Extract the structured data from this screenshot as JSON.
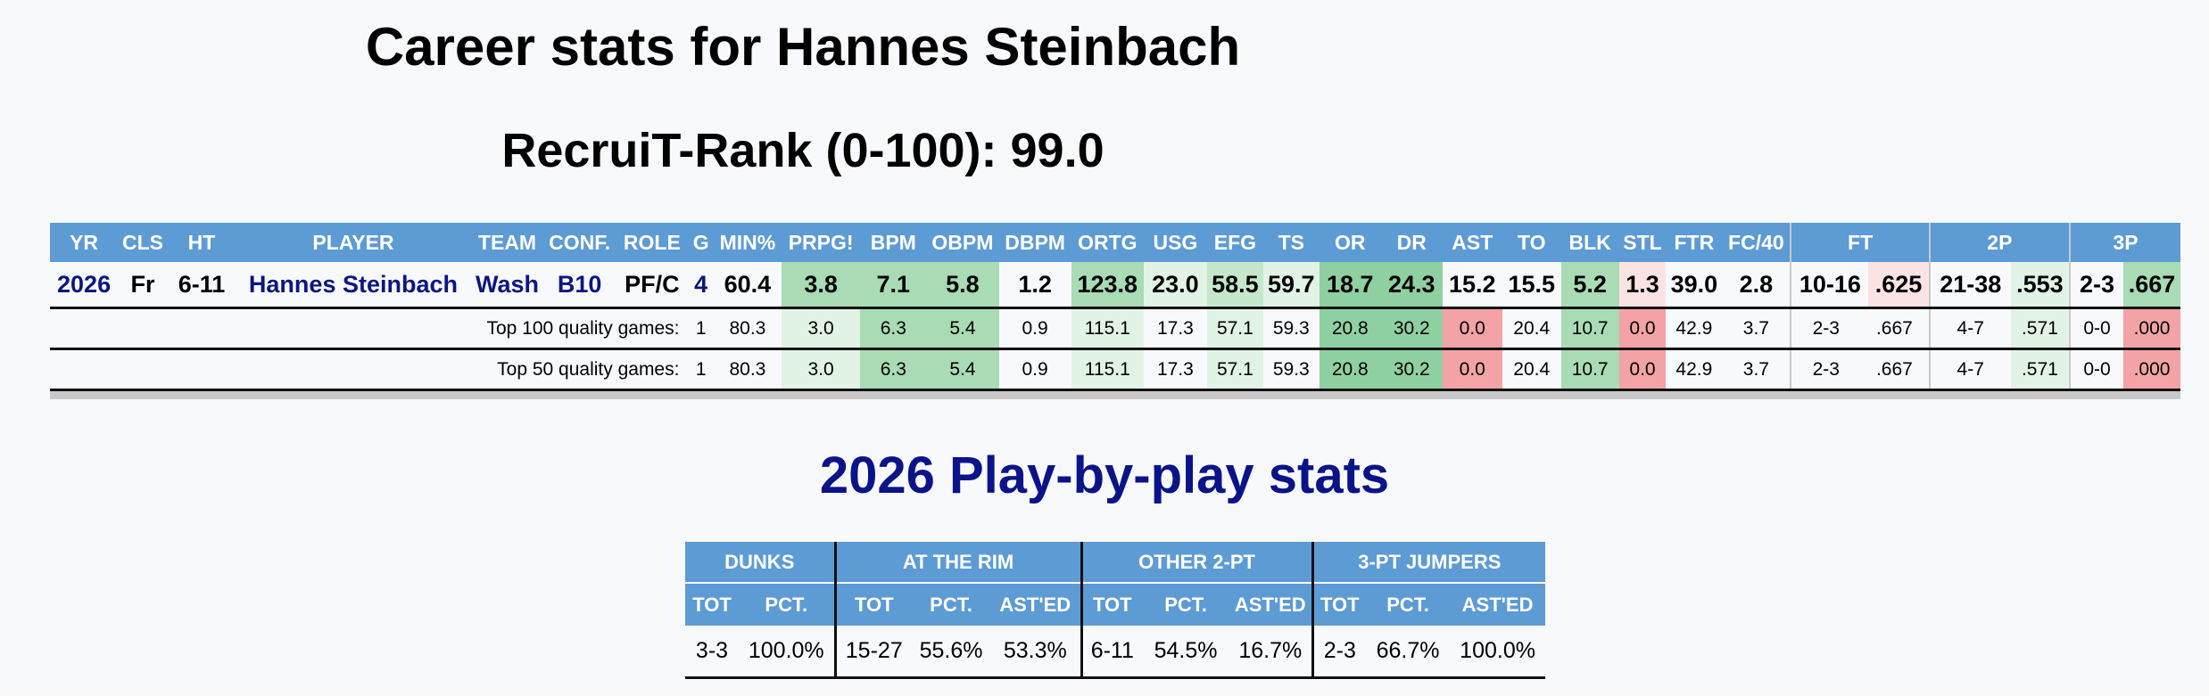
{
  "page": {
    "title": "Career stats for Hannes Steinbach",
    "subtitle": "RecruiT-Rank (0-100): 99.0"
  },
  "career_table": {
    "headers": [
      "YR",
      "CLS",
      "HT",
      "PLAYER",
      "TEAM",
      "CONF.",
      "ROLE",
      "G",
      "MIN%",
      "PRPG!",
      "BPM",
      "OBPM",
      "DBPM",
      "ORTG",
      "USG",
      "EFG",
      "TS",
      "OR",
      "DR",
      "AST",
      "TO",
      "BLK",
      "STL",
      "FTR",
      "FC/40",
      "FT",
      "2P",
      "3P"
    ],
    "main_row": {
      "yr": "2026",
      "cls": "Fr",
      "ht": "6-11",
      "player": "Hannes Steinbach",
      "team": "Wash",
      "conf": "B10",
      "role": "PF/C",
      "g": "4",
      "min": "60.4",
      "prpg": "3.8",
      "bpm": "7.1",
      "obpm": "5.8",
      "dbpm": "1.2",
      "ortg": "123.8",
      "usg": "23.0",
      "efg": "58.5",
      "ts": "59.7",
      "or": "18.7",
      "dr": "24.3",
      "ast": "15.2",
      "to": "15.5",
      "blk": "5.2",
      "stl": "1.3",
      "ftr": "39.0",
      "fc40": "2.8",
      "ft_m": "10-16",
      "ft_p": ".625",
      "p2_m": "21-38",
      "p2_p": ".553",
      "p3_m": "2-3",
      "p3_p": ".667"
    },
    "top100_row": {
      "label": "Top 100 quality games:",
      "g": "1",
      "min": "80.3",
      "prpg": "3.0",
      "bpm": "6.3",
      "obpm": "5.4",
      "dbpm": "0.9",
      "ortg": "115.1",
      "usg": "17.3",
      "efg": "57.1",
      "ts": "59.3",
      "or": "20.8",
      "dr": "30.2",
      "ast": "0.0",
      "to": "20.4",
      "blk": "10.7",
      "stl": "0.0",
      "ftr": "42.9",
      "fc40": "3.7",
      "ft_m": "2-3",
      "ft_p": ".667",
      "p2_m": "4-7",
      "p2_p": ".571",
      "p3_m": "0-0",
      "p3_p": ".000"
    },
    "top50_row": {
      "label": "Top 50 quality games:",
      "g": "1",
      "min": "80.3",
      "prpg": "3.0",
      "bpm": "6.3",
      "obpm": "5.4",
      "dbpm": "0.9",
      "ortg": "115.1",
      "usg": "17.3",
      "efg": "57.1",
      "ts": "59.3",
      "or": "20.8",
      "dr": "30.2",
      "ast": "0.0",
      "to": "20.4",
      "blk": "10.7",
      "stl": "0.0",
      "ftr": "42.9",
      "fc40": "3.7",
      "ft_m": "2-3",
      "ft_p": ".667",
      "p2_m": "4-7",
      "p2_p": ".571",
      "p3_m": "0-0",
      "p3_p": ".000"
    }
  },
  "pbp": {
    "title": "2026 Play-by-play stats",
    "groups": [
      "DUNKS",
      "AT THE RIM",
      "OTHER 2-PT",
      "3-PT JUMPERS"
    ],
    "subheaders": [
      "TOT",
      "PCT.",
      "TOT",
      "PCT.",
      "AST'ED",
      "TOT",
      "PCT.",
      "AST'ED",
      "TOT",
      "PCT.",
      "AST'ED"
    ],
    "row": [
      "3-3",
      "100.0%",
      "15-27",
      "55.6%",
      "53.3%",
      "6-11",
      "54.5%",
      "16.7%",
      "2-3",
      "66.7%",
      "100.0%"
    ]
  },
  "colors": {
    "header_blue": "#5d9bd5",
    "link_navy": "#0b1680",
    "pbp_title": "#0a1488",
    "good_strong": "#8fd0a1",
    "good_light": "#e1f3e5",
    "bad_strong": "#f3a3a5",
    "bad_light": "#fbe3e4"
  }
}
